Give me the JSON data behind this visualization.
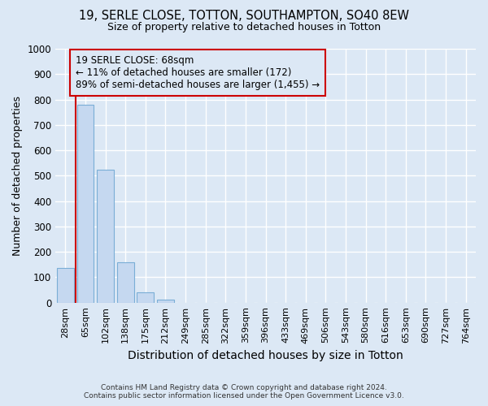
{
  "title1": "19, SERLE CLOSE, TOTTON, SOUTHAMPTON, SO40 8EW",
  "title2": "Size of property relative to detached houses in Totton",
  "xlabel": "Distribution of detached houses by size in Totton",
  "ylabel": "Number of detached properties",
  "categories": [
    "28sqm",
    "65sqm",
    "102sqm",
    "138sqm",
    "175sqm",
    "212sqm",
    "249sqm",
    "285sqm",
    "322sqm",
    "359sqm",
    "396sqm",
    "433sqm",
    "469sqm",
    "506sqm",
    "543sqm",
    "580sqm",
    "616sqm",
    "653sqm",
    "690sqm",
    "727sqm",
    "764sqm"
  ],
  "values": [
    135,
    780,
    525,
    160,
    40,
    12,
    0,
    0,
    0,
    0,
    0,
    0,
    0,
    0,
    0,
    0,
    0,
    0,
    0,
    0,
    0
  ],
  "bar_color": "#c5d8f0",
  "bar_edge_color": "#7aaed6",
  "ylim": [
    0,
    1000
  ],
  "yticks": [
    0,
    100,
    200,
    300,
    400,
    500,
    600,
    700,
    800,
    900,
    1000
  ],
  "property_line_x": 0.5,
  "annotation_title": "19 SERLE CLOSE: 68sqm",
  "annotation_line1": "← 11% of detached houses are smaller (172)",
  "annotation_line2": "89% of semi-detached houses are larger (1,455) →",
  "annotation_color": "#cc0000",
  "bg_color": "#dce8f5",
  "grid_color": "#ffffff",
  "footer1": "Contains HM Land Registry data © Crown copyright and database right 2024.",
  "footer2": "Contains public sector information licensed under the Open Government Licence v3.0."
}
